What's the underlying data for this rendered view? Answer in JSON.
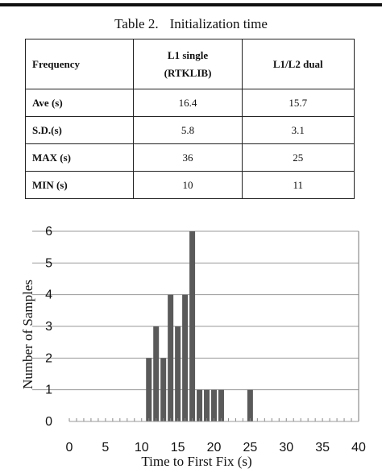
{
  "table": {
    "caption_number": "Table 2.",
    "caption_title": "Initialization time",
    "columns": [
      "Frequency",
      "L1 single",
      "(RTKLIB)",
      "L1/L2 dual"
    ],
    "rows": [
      {
        "label": "Ave (s)",
        "l1": "16.4",
        "dual": "15.7"
      },
      {
        "label": "S.D.(s)",
        "l1": "5.8",
        "dual": "3.1"
      },
      {
        "label": "MAX (s)",
        "l1": "36",
        "dual": "25"
      },
      {
        "label": "MIN (s)",
        "l1": "10",
        "dual": "11"
      }
    ]
  },
  "chart_data": {
    "type": "bar",
    "xlabel": "Time to First Fix (s)",
    "ylabel": "Number of Samples",
    "xlim": [
      0,
      40
    ],
    "ylim": [
      0,
      6
    ],
    "x_ticks": [
      "0",
      "5",
      "10",
      "15",
      "20",
      "25",
      "30",
      "35",
      "40"
    ],
    "y_ticks": [
      "0",
      "1",
      "2",
      "3",
      "4",
      "5",
      "6"
    ],
    "grid": "horizontal",
    "bar_color": "#5a5a5a",
    "x": [
      11,
      12,
      13,
      14,
      15,
      16,
      17,
      18,
      19,
      20,
      21,
      25
    ],
    "values": [
      2,
      3,
      2,
      4,
      3,
      4,
      6,
      1,
      1,
      1,
      1,
      1
    ]
  }
}
